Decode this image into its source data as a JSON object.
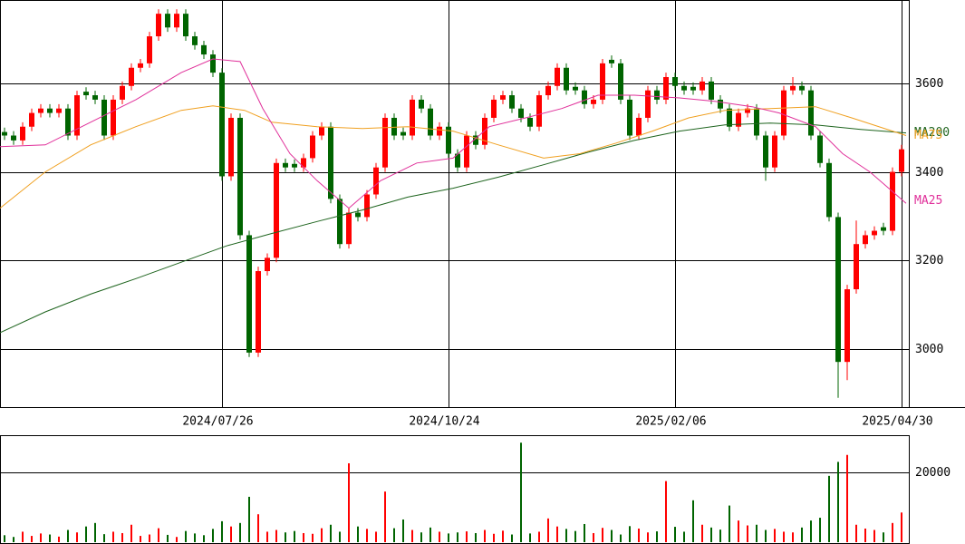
{
  "chart_data": {
    "type": "candlestick",
    "xlim": [
      -0.5,
      99.5
    ],
    "xticks": [
      {
        "value": 24,
        "label": "2024/07/26"
      },
      {
        "value": 49,
        "label": "2024/10/24"
      },
      {
        "value": 74,
        "label": "2025/02/06"
      },
      {
        "value": 99,
        "label": "2025/04/30"
      }
    ],
    "ylim": [
      2869,
      3788
    ],
    "yticks": [
      3000,
      3200,
      3400,
      3600
    ],
    "up_color": "#ff0000",
    "down_color": "#006400",
    "ohlc": [
      [
        3490,
        3500,
        3472,
        3482
      ],
      [
        3482,
        3492,
        3461,
        3471
      ],
      [
        3471,
        3512,
        3461,
        3502
      ],
      [
        3502,
        3543,
        3492,
        3533
      ],
      [
        3533,
        3553,
        3523,
        3543
      ],
      [
        3543,
        3553,
        3523,
        3533
      ],
      [
        3533,
        3553,
        3523,
        3543
      ],
      [
        3543,
        3553,
        3472,
        3482
      ],
      [
        3482,
        3583,
        3472,
        3573
      ],
      [
        3581,
        3591,
        3563,
        3573
      ],
      [
        3573,
        3583,
        3553,
        3563
      ],
      [
        3563,
        3573,
        3472,
        3482
      ],
      [
        3482,
        3573,
        3472,
        3563
      ],
      [
        3563,
        3604,
        3553,
        3594
      ],
      [
        3594,
        3645,
        3584,
        3635
      ],
      [
        3635,
        3655,
        3625,
        3645
      ],
      [
        3645,
        3716,
        3635,
        3706
      ],
      [
        3706,
        3767,
        3696,
        3757
      ],
      [
        3757,
        3767,
        3716,
        3726
      ],
      [
        3726,
        3767,
        3716,
        3757
      ],
      [
        3757,
        3767,
        3696,
        3706
      ],
      [
        3706,
        3716,
        3676,
        3686
      ],
      [
        3686,
        3696,
        3655,
        3665
      ],
      [
        3665,
        3675,
        3614,
        3624
      ],
      [
        3624,
        3634,
        3380,
        3390
      ],
      [
        3390,
        3532,
        3380,
        3522
      ],
      [
        3522,
        3532,
        3247,
        3257
      ],
      [
        3257,
        3267,
        2982,
        2992
      ],
      [
        2992,
        3186,
        2982,
        3176
      ],
      [
        3176,
        3216,
        3166,
        3206
      ],
      [
        3206,
        3430,
        3196,
        3420
      ],
      [
        3420,
        3430,
        3400,
        3410
      ],
      [
        3418,
        3428,
        3400,
        3410
      ],
      [
        3410,
        3441,
        3400,
        3431
      ],
      [
        3431,
        3492,
        3421,
        3482
      ],
      [
        3482,
        3512,
        3472,
        3502
      ],
      [
        3502,
        3512,
        3329,
        3339
      ],
      [
        3339,
        3349,
        3227,
        3237
      ],
      [
        3237,
        3318,
        3227,
        3308
      ],
      [
        3308,
        3318,
        3288,
        3298
      ],
      [
        3298,
        3359,
        3288,
        3349
      ],
      [
        3349,
        3420,
        3339,
        3410
      ],
      [
        3410,
        3532,
        3400,
        3522
      ],
      [
        3522,
        3532,
        3472,
        3482
      ],
      [
        3490,
        3500,
        3472,
        3482
      ],
      [
        3482,
        3573,
        3472,
        3563
      ],
      [
        3563,
        3573,
        3533,
        3543
      ],
      [
        3543,
        3553,
        3472,
        3482
      ],
      [
        3482,
        3512,
        3472,
        3502
      ],
      [
        3502,
        3512,
        3431,
        3441
      ],
      [
        3441,
        3451,
        3400,
        3410
      ],
      [
        3410,
        3492,
        3400,
        3482
      ],
      [
        3482,
        3492,
        3451,
        3461
      ],
      [
        3461,
        3532,
        3451,
        3522
      ],
      [
        3522,
        3573,
        3512,
        3563
      ],
      [
        3563,
        3583,
        3553,
        3573
      ],
      [
        3573,
        3583,
        3533,
        3543
      ],
      [
        3543,
        3553,
        3512,
        3522
      ],
      [
        3522,
        3532,
        3492,
        3502
      ],
      [
        3502,
        3583,
        3492,
        3573
      ],
      [
        3573,
        3604,
        3563,
        3594
      ],
      [
        3594,
        3645,
        3584,
        3635
      ],
      [
        3635,
        3645,
        3574,
        3584
      ],
      [
        3592,
        3602,
        3574,
        3584
      ],
      [
        3584,
        3594,
        3543,
        3553
      ],
      [
        3553,
        3573,
        3543,
        3563
      ],
      [
        3563,
        3655,
        3553,
        3645
      ],
      [
        3653,
        3663,
        3635,
        3645
      ],
      [
        3645,
        3655,
        3553,
        3563
      ],
      [
        3563,
        3573,
        3472,
        3482
      ],
      [
        3482,
        3532,
        3472,
        3522
      ],
      [
        3522,
        3594,
        3512,
        3584
      ],
      [
        3584,
        3594,
        3553,
        3563
      ],
      [
        3563,
        3624,
        3553,
        3614
      ],
      [
        3614,
        3624,
        3584,
        3594
      ],
      [
        3594,
        3604,
        3574,
        3584
      ],
      [
        3592,
        3602,
        3574,
        3584
      ],
      [
        3584,
        3614,
        3574,
        3604
      ],
      [
        3604,
        3614,
        3553,
        3563
      ],
      [
        3563,
        3573,
        3533,
        3543
      ],
      [
        3543,
        3553,
        3492,
        3502
      ],
      [
        3502,
        3543,
        3492,
        3533
      ],
      [
        3533,
        3553,
        3523,
        3543
      ],
      [
        3543,
        3553,
        3472,
        3482
      ],
      [
        3482,
        3492,
        3380,
        3410
      ],
      [
        3410,
        3492,
        3400,
        3482
      ],
      [
        3482,
        3594,
        3472,
        3584
      ],
      [
        3584,
        3614,
        3574,
        3594
      ],
      [
        3594,
        3604,
        3574,
        3584
      ],
      [
        3584,
        3594,
        3472,
        3482
      ],
      [
        3482,
        3492,
        3410,
        3420
      ],
      [
        3420,
        3430,
        3288,
        3298
      ],
      [
        3298,
        3308,
        2890,
        2971
      ],
      [
        2971,
        3145,
        2930,
        3135
      ],
      [
        3135,
        3290,
        3125,
        3237
      ],
      [
        3237,
        3267,
        3227,
        3257
      ],
      [
        3257,
        3277,
        3247,
        3267
      ],
      [
        3275,
        3285,
        3257,
        3267
      ],
      [
        3267,
        3410,
        3257,
        3400
      ],
      [
        3400,
        3461,
        3390,
        3451
      ]
    ],
    "moving_averages": [
      {
        "name": "MA200",
        "color": "#1e641e",
        "x": [
          -0.5,
          4.5,
          9.5,
          14.5,
          19.5,
          24.5,
          29.5,
          34.5,
          39.5,
          44.5,
          49.5,
          54.5,
          59.5,
          64.5,
          69.5,
          74.5,
          79.5,
          84.5,
          89.5,
          94.5,
          99.5
        ],
        "values": [
          3037,
          3084,
          3124,
          3159,
          3196,
          3233,
          3261,
          3288,
          3314,
          3343,
          3363,
          3388,
          3416,
          3445,
          3471,
          3492,
          3506,
          3510,
          3506,
          3496,
          3488
        ]
      },
      {
        "name": "MA75",
        "color": "#f0a020",
        "x": [
          -0.5,
          4.5,
          9.5,
          14.5,
          19.5,
          23,
          26.5,
          29.5,
          34.5,
          39.5,
          44.5,
          49.5,
          54.5,
          59.5,
          63.5,
          67.5,
          71.5,
          75.5,
          79.5,
          84.5,
          89.5,
          93.5,
          99.5
        ],
        "values": [
          3318,
          3400,
          3461,
          3502,
          3539,
          3549,
          3539,
          3512,
          3502,
          3498,
          3502,
          3492,
          3461,
          3431,
          3441,
          3465,
          3492,
          3522,
          3539,
          3543,
          3547,
          3522,
          3482
        ]
      },
      {
        "name": "MA25",
        "color": "#e0309a",
        "x": [
          -0.5,
          4.5,
          9.5,
          14.5,
          19.5,
          23,
          26,
          28.5,
          31.5,
          34.5,
          38,
          41.5,
          45.5,
          49.5,
          53.5,
          57.5,
          61.5,
          65.5,
          69.5,
          74.5,
          78.5,
          82.5,
          85.5,
          89.5,
          92.5,
          95.5,
          99.5
        ],
        "values": [
          3457,
          3461,
          3512,
          3563,
          3624,
          3655,
          3649,
          3543,
          3441,
          3380,
          3318,
          3380,
          3420,
          3431,
          3502,
          3522,
          3543,
          3573,
          3573,
          3567,
          3559,
          3547,
          3533,
          3502,
          3441,
          3400,
          3329
        ]
      }
    ],
    "volume": {
      "ylim": [
        0,
        30650
      ],
      "yticks": [
        20000
      ],
      "values": [
        2000,
        1500,
        3000,
        1800,
        2500,
        2200,
        1600,
        3500,
        2800,
        4500,
        5500,
        2300,
        3000,
        2600,
        5000,
        1800,
        2200,
        4000,
        2100,
        1500,
        3200,
        2500,
        2000,
        3800,
        6000,
        4500,
        5500,
        13000,
        8000,
        3000,
        3500,
        2800,
        3200,
        2600,
        2400,
        4000,
        5000,
        3000,
        22600,
        4500,
        3800,
        3000,
        14500,
        4000,
        6500,
        3500,
        2800,
        4200,
        3000,
        2500,
        2800,
        3100,
        2600,
        3500,
        2400,
        3300,
        2200,
        28500,
        2500,
        3000,
        6800,
        4500,
        3800,
        3200,
        5200,
        2600,
        4100,
        3500,
        2200,
        4600,
        3900,
        2800,
        3100,
        17500,
        4400,
        3000,
        12000,
        5000,
        4200,
        3600,
        10500,
        6200,
        4800,
        5000,
        3500,
        3800,
        3000,
        2800,
        4200,
        6200,
        7000,
        19000,
        23000,
        25000,
        5000,
        3900,
        3500,
        2800,
        5500,
        8500
      ]
    }
  }
}
